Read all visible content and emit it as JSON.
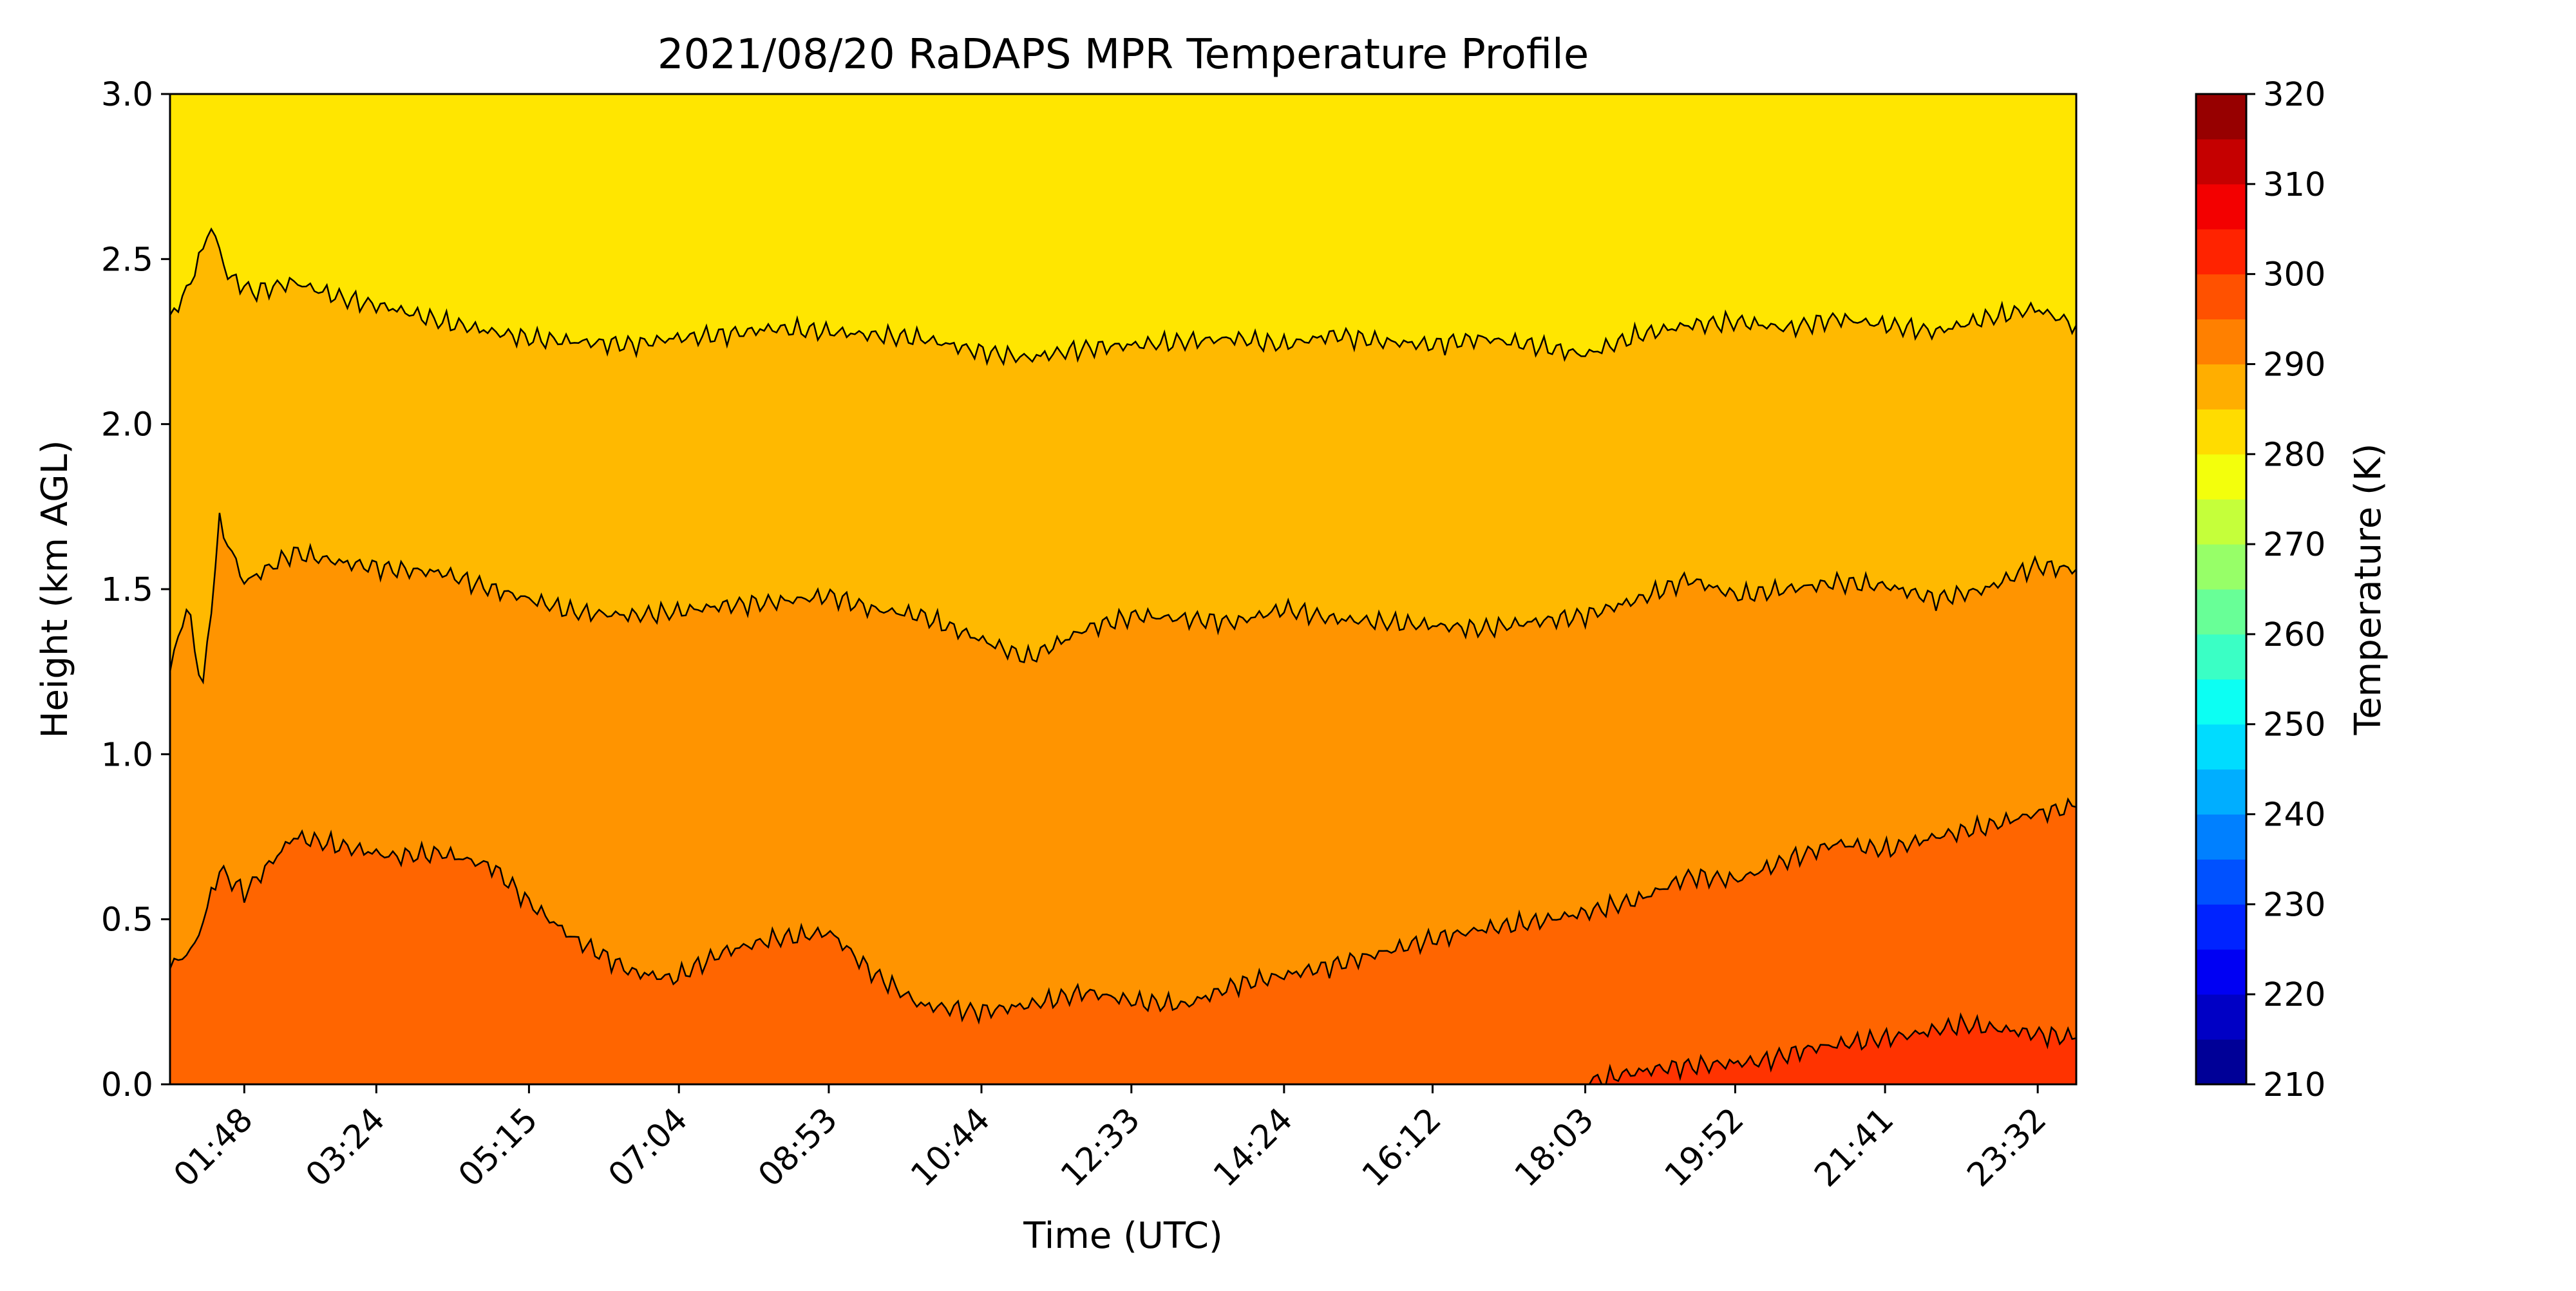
{
  "chart_data": {
    "type": "contour",
    "title": "2021/08/20 RaDAPS MPR Temperature Profile",
    "xlabel": "Time (UTC)",
    "ylabel": "Height (km AGL)",
    "x_ticks": [
      "01:48",
      "03:24",
      "05:15",
      "07:04",
      "08:53",
      "10:44",
      "12:33",
      "14:24",
      "16:12",
      "18:03",
      "19:52",
      "21:41",
      "23:32"
    ],
    "x_tick_hours": [
      1.8,
      3.4,
      5.25,
      7.067,
      8.883,
      10.733,
      12.55,
      14.4,
      16.2,
      18.05,
      19.867,
      21.683,
      23.533
    ],
    "xlim_hours": [
      0.9,
      24.0
    ],
    "ylim": [
      0,
      3.0
    ],
    "y_ticks": [
      0.0,
      0.5,
      1.0,
      1.5,
      2.0,
      2.5,
      3.0
    ],
    "colorbar": {
      "label": "Temperature (K)",
      "range": [
        210,
        320
      ],
      "step": 5,
      "ticks": [
        210,
        220,
        230,
        240,
        250,
        260,
        270,
        280,
        290,
        300,
        310,
        320
      ]
    },
    "filled_levels": [
      {
        "range": [
          305,
          310
        ],
        "color": "#ff3300"
      },
      {
        "range": [
          300,
          305
        ],
        "color": "#ff6500"
      },
      {
        "range": [
          295,
          300
        ],
        "color": "#ff9400"
      },
      {
        "range": [
          290,
          295
        ],
        "color": "#ffb900"
      },
      {
        "range": [
          285,
          290
        ],
        "color": "#ffe600"
      }
    ],
    "contour_lines": [
      {
        "level": 305,
        "x_hours": [
          18.05,
          18.5,
          19.0,
          19.6,
          20.2,
          20.8,
          21.4,
          22.0,
          22.6,
          23.0,
          23.6,
          24.0
        ],
        "heights_km": [
          0.0,
          0.03,
          0.05,
          0.06,
          0.07,
          0.11,
          0.13,
          0.15,
          0.18,
          0.17,
          0.15,
          0.14
        ]
      },
      {
        "level": 300,
        "x_hours": [
          0.9,
          1.2,
          1.5,
          1.8,
          2.4,
          3.0,
          3.6,
          4.2,
          4.8,
          5.25,
          5.8,
          6.5,
          7.0,
          7.6,
          8.2,
          8.9,
          9.4,
          10.0,
          10.7,
          11.3,
          12.0,
          12.6,
          13.2,
          13.8,
          14.4,
          15.0,
          15.6,
          16.2,
          16.8,
          17.4,
          18.05,
          18.7,
          19.3,
          19.9,
          20.5,
          21.1,
          21.7,
          22.3,
          22.9,
          23.5,
          24.0
        ],
        "heights_km": [
          0.35,
          0.42,
          0.65,
          0.58,
          0.75,
          0.72,
          0.69,
          0.7,
          0.66,
          0.55,
          0.44,
          0.34,
          0.32,
          0.4,
          0.44,
          0.46,
          0.34,
          0.24,
          0.22,
          0.24,
          0.28,
          0.25,
          0.24,
          0.3,
          0.33,
          0.36,
          0.4,
          0.44,
          0.47,
          0.49,
          0.52,
          0.56,
          0.63,
          0.62,
          0.68,
          0.73,
          0.71,
          0.75,
          0.78,
          0.82,
          0.84
        ]
      },
      {
        "level": 295,
        "x_hours": [
          0.9,
          1.1,
          1.3,
          1.5,
          1.8,
          2.4,
          3.0,
          3.6,
          4.2,
          4.8,
          5.25,
          5.8,
          6.5,
          7.0,
          7.6,
          8.2,
          8.9,
          9.4,
          10.0,
          10.7,
          11.3,
          12.0,
          12.6,
          13.2,
          13.8,
          14.4,
          15.0,
          15.6,
          16.2,
          16.8,
          17.4,
          18.05,
          18.7,
          19.3,
          19.9,
          20.5,
          21.1,
          21.7,
          22.3,
          22.9,
          23.5,
          24.0
        ],
        "heights_km": [
          1.25,
          1.45,
          1.2,
          1.7,
          1.52,
          1.61,
          1.58,
          1.56,
          1.55,
          1.5,
          1.47,
          1.43,
          1.42,
          1.43,
          1.45,
          1.46,
          1.48,
          1.44,
          1.42,
          1.35,
          1.29,
          1.38,
          1.42,
          1.41,
          1.4,
          1.44,
          1.41,
          1.4,
          1.39,
          1.38,
          1.4,
          1.42,
          1.47,
          1.53,
          1.48,
          1.5,
          1.52,
          1.51,
          1.47,
          1.5,
          1.57,
          1.56
        ]
      },
      {
        "level": 290,
        "x_hours": [
          0.9,
          1.1,
          1.4,
          1.6,
          1.9,
          2.4,
          3.0,
          3.6,
          4.2,
          4.8,
          5.25,
          5.8,
          6.5,
          7.0,
          7.6,
          8.2,
          8.9,
          9.4,
          10.0,
          10.7,
          11.3,
          12.0,
          12.6,
          13.2,
          13.8,
          14.4,
          15.0,
          15.6,
          16.2,
          16.8,
          17.4,
          18.05,
          18.7,
          19.3,
          19.9,
          20.5,
          21.1,
          21.7,
          22.3,
          22.9,
          23.5,
          24.0
        ],
        "heights_km": [
          2.33,
          2.4,
          2.6,
          2.45,
          2.4,
          2.43,
          2.38,
          2.35,
          2.31,
          2.28,
          2.26,
          2.25,
          2.24,
          2.26,
          2.27,
          2.29,
          2.28,
          2.27,
          2.26,
          2.22,
          2.2,
          2.23,
          2.24,
          2.25,
          2.26,
          2.24,
          2.27,
          2.25,
          2.24,
          2.26,
          2.24,
          2.21,
          2.27,
          2.3,
          2.31,
          2.29,
          2.32,
          2.3,
          2.28,
          2.32,
          2.35,
          2.3
        ]
      }
    ]
  }
}
